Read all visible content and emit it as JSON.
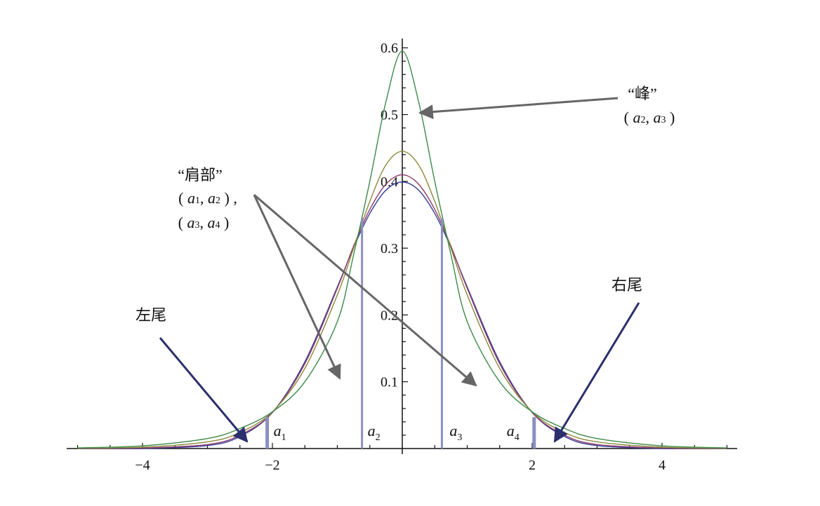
{
  "chart_data": {
    "type": "line",
    "title": "",
    "xlabel": "",
    "ylabel": "",
    "xlim": [
      -5.2,
      5.2
    ],
    "ylim": [
      0,
      0.6
    ],
    "grid": false,
    "x_ticks": [
      {
        "value": -4,
        "label": "−4"
      },
      {
        "value": -2,
        "label": "−2"
      },
      {
        "value": 2,
        "label": "2"
      },
      {
        "value": 4,
        "label": "4"
      }
    ],
    "y_ticks": [
      {
        "value": 0.1,
        "label": "0.1"
      },
      {
        "value": 0.2,
        "label": "0.2"
      },
      {
        "value": 0.3,
        "label": "0.3"
      },
      {
        "value": 0.4,
        "label": "0.4"
      },
      {
        "value": 0.5,
        "label": "0.5"
      },
      {
        "value": 0.6,
        "label": "0.6"
      }
    ],
    "x": [
      -5,
      -4,
      -3,
      -2.5,
      -2,
      -1.5,
      -1,
      -0.75,
      -0.5,
      -0.25,
      0,
      0.25,
      0.5,
      0.75,
      1,
      1.5,
      2,
      2.5,
      3,
      4,
      5
    ],
    "series": [
      {
        "color": "#3a3f9a",
        "values": [
          0.0,
          0.0001,
          0.0044,
          0.018,
          0.054,
          0.13,
          0.242,
          0.301,
          0.352,
          0.387,
          0.399,
          0.387,
          0.352,
          0.301,
          0.242,
          0.13,
          0.054,
          0.018,
          0.0044,
          0.0001,
          0.0
        ]
      },
      {
        "color": "#8a3a6a",
        "values": [
          0.0001,
          0.0008,
          0.006,
          0.02,
          0.054,
          0.127,
          0.24,
          0.303,
          0.358,
          0.396,
          0.41,
          0.396,
          0.358,
          0.303,
          0.24,
          0.127,
          0.054,
          0.02,
          0.006,
          0.0008,
          0.0001
        ]
      },
      {
        "color": "#8a8a3a",
        "values": [
          0.0004,
          0.002,
          0.01,
          0.024,
          0.055,
          0.12,
          0.23,
          0.3,
          0.37,
          0.425,
          0.445,
          0.425,
          0.37,
          0.3,
          0.23,
          0.12,
          0.055,
          0.024,
          0.01,
          0.002,
          0.0004
        ]
      },
      {
        "color": "#3d8a4a",
        "values": [
          0.001,
          0.004,
          0.015,
          0.03,
          0.055,
          0.1,
          0.19,
          0.29,
          0.4,
          0.52,
          0.595,
          0.52,
          0.4,
          0.29,
          0.19,
          0.1,
          0.055,
          0.03,
          0.015,
          0.004,
          0.001
        ]
      }
    ],
    "vertical_markers": [
      {
        "x": -2.08,
        "label": "a",
        "sub": "1"
      },
      {
        "x": -0.62,
        "label": "a",
        "sub": "2"
      },
      {
        "x": 0.61,
        "label": "a",
        "sub": "3"
      },
      {
        "x": 2.03,
        "label": "a",
        "sub": "4"
      }
    ],
    "annotations": {
      "peak": {
        "title": "“峰”",
        "a": "a",
        "s1": "2",
        "s2": "3"
      },
      "shoulder": {
        "title": "“肩部”",
        "line1_s1": "1",
        "line1_s2": "2",
        "line2_s1": "3",
        "line2_s2": "4",
        "a": "a"
      },
      "left_tail": "左尾",
      "right_tail": "右尾"
    },
    "colors": {
      "annotation_arrow": "#666666",
      "tail_arrow": "#2b2f6b",
      "marker": "#8c8fc0"
    }
  }
}
